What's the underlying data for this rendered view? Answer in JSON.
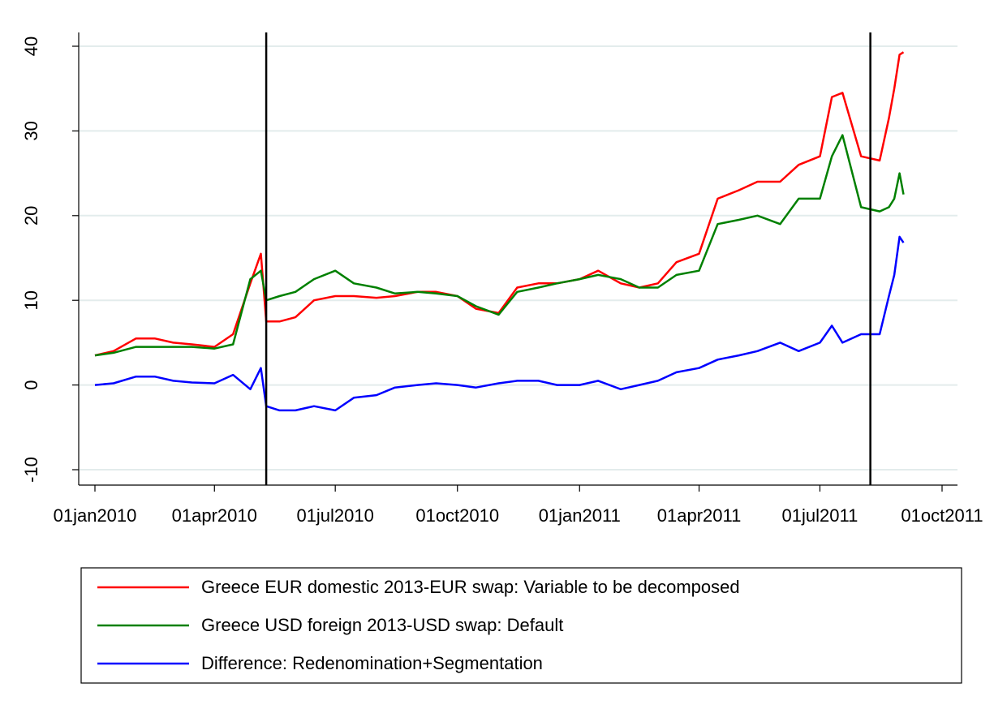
{
  "chart_data": {
    "type": "line",
    "x": [
      "2010-01-01",
      "2010-01-15",
      "2010-02-01",
      "2010-02-15",
      "2010-03-01",
      "2010-03-15",
      "2010-04-01",
      "2010-04-15",
      "2010-04-28",
      "2010-05-06",
      "2010-05-10",
      "2010-05-20",
      "2010-06-01",
      "2010-06-15",
      "2010-07-01",
      "2010-07-15",
      "2010-08-01",
      "2010-08-15",
      "2010-09-01",
      "2010-09-15",
      "2010-10-01",
      "2010-10-15",
      "2010-11-01",
      "2010-11-15",
      "2010-12-01",
      "2010-12-15",
      "2011-01-01",
      "2011-01-15",
      "2011-02-01",
      "2011-02-15",
      "2011-03-01",
      "2011-03-15",
      "2011-04-01",
      "2011-04-15",
      "2011-05-01",
      "2011-05-15",
      "2011-06-01",
      "2011-06-15",
      "2011-07-01",
      "2011-07-10",
      "2011-07-18",
      "2011-08-01",
      "2011-08-15",
      "2011-08-22",
      "2011-08-26",
      "2011-08-30",
      "2011-09-02"
    ],
    "series": [
      {
        "name": "Greece EUR domestic 2013-EUR swap: Variable to be decomposed",
        "color": "#ff0000",
        "values": [
          3.5,
          4,
          5.5,
          5.5,
          5,
          4.8,
          4.5,
          6,
          12,
          15.5,
          7.5,
          7.5,
          8,
          10,
          10.5,
          10.5,
          10.3,
          10.5,
          11,
          11,
          10.5,
          9,
          8.5,
          11.5,
          12,
          12,
          12.5,
          13.5,
          12,
          11.5,
          12,
          14.5,
          15.5,
          22,
          23,
          24,
          24,
          26,
          27,
          34,
          34.5,
          27,
          26.5,
          31.5,
          35,
          39,
          39.3
        ]
      },
      {
        "name": "Greece USD foreign 2013-USD swap: Default",
        "color": "#008000",
        "values": [
          3.5,
          3.8,
          4.5,
          4.5,
          4.5,
          4.5,
          4.3,
          4.8,
          12.5,
          13.5,
          10,
          10.5,
          11,
          12.5,
          13.5,
          12,
          11.5,
          10.8,
          11,
          10.8,
          10.5,
          9.3,
          8.3,
          11,
          11.5,
          12,
          12.5,
          13,
          12.5,
          11.5,
          11.5,
          13,
          13.5,
          19,
          19.5,
          20,
          19,
          22,
          22,
          27,
          29.5,
          21,
          20.5,
          21,
          22,
          25,
          22.5
        ]
      },
      {
        "name": "Difference: Redenomination+Segmentation",
        "color": "#0000ff",
        "values": [
          0,
          0.2,
          1,
          1,
          0.5,
          0.3,
          0.2,
          1.2,
          -0.5,
          2,
          -2.5,
          -3,
          -3,
          -2.5,
          -3,
          -1.5,
          -1.2,
          -0.3,
          0,
          0.2,
          0,
          -0.3,
          0.2,
          0.5,
          0.5,
          0,
          0,
          0.5,
          -0.5,
          0,
          0.5,
          1.5,
          2,
          3,
          3.5,
          4,
          5,
          4,
          5,
          7,
          5,
          6,
          6,
          10.5,
          13,
          17.5,
          16.8
        ]
      }
    ],
    "reference_lines": [
      {
        "x": "2010-05-10"
      },
      {
        "x": "2011-08-08"
      }
    ],
    "xlim": [
      "2010-01-01",
      "2011-10-01"
    ],
    "xticks": [
      {
        "value": "2010-01-01",
        "label": "01jan2010"
      },
      {
        "value": "2010-04-01",
        "label": "01apr2010"
      },
      {
        "value": "2010-07-01",
        "label": "01jul2010"
      },
      {
        "value": "2010-10-01",
        "label": "01oct2010"
      },
      {
        "value": "2011-01-01",
        "label": "01jan2011"
      },
      {
        "value": "2011-04-01",
        "label": "01apr2011"
      },
      {
        "value": "2011-07-01",
        "label": "01jul2011"
      },
      {
        "value": "2011-10-01",
        "label": "01oct2011"
      }
    ],
    "ylim": [
      -10,
      40
    ],
    "yticks": [
      -10,
      0,
      10,
      20,
      30,
      40
    ],
    "grid": true
  }
}
